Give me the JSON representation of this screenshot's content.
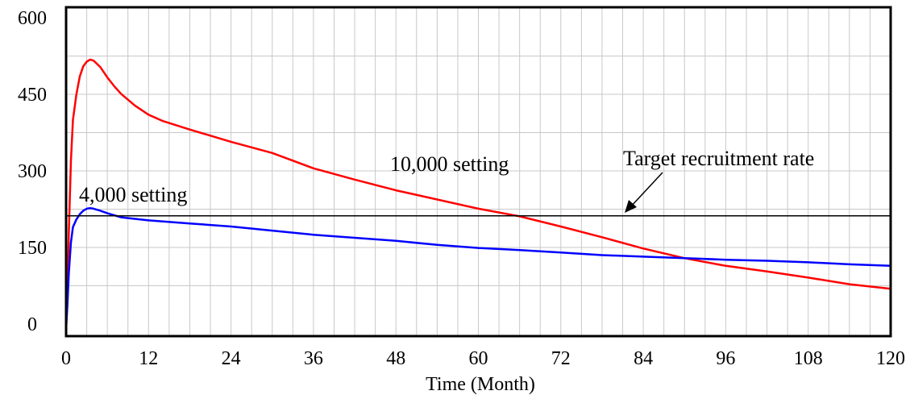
{
  "chart_data": {
    "type": "line",
    "title": "",
    "xlabel": "Time (Month)",
    "ylabel": "",
    "xlim": [
      0,
      120
    ],
    "ylim": [
      0,
      600
    ],
    "x_ticks": [
      0,
      12,
      24,
      36,
      48,
      60,
      72,
      84,
      96,
      108,
      120
    ],
    "y_ticks": [
      0,
      150,
      300,
      450,
      600
    ],
    "grid": true,
    "legend": "none",
    "series": [
      {
        "color": "#ff0000",
        "points": [
          [
            0,
            -10
          ],
          [
            0.2,
            60
          ],
          [
            0.4,
            180
          ],
          [
            0.7,
            320
          ],
          [
            1,
            400
          ],
          [
            1.5,
            450
          ],
          [
            2,
            485
          ],
          [
            2.5,
            505
          ],
          [
            3,
            514
          ],
          [
            3.5,
            518
          ],
          [
            4,
            516
          ],
          [
            5,
            503
          ],
          [
            6,
            483
          ],
          [
            7,
            466
          ],
          [
            8,
            451
          ],
          [
            10,
            428
          ],
          [
            12,
            410
          ],
          [
            14,
            398
          ],
          [
            18,
            381
          ],
          [
            24,
            357
          ],
          [
            30,
            335
          ],
          [
            36,
            305
          ],
          [
            42,
            283
          ],
          [
            48,
            262
          ],
          [
            54,
            244
          ],
          [
            60,
            226
          ],
          [
            66,
            211
          ],
          [
            72,
            191
          ],
          [
            78,
            170
          ],
          [
            84,
            148
          ],
          [
            90,
            129
          ],
          [
            96,
            114
          ],
          [
            102,
            103
          ],
          [
            108,
            91
          ],
          [
            114,
            78
          ],
          [
            120,
            69
          ]
        ]
      },
      {
        "color": "#0000ff",
        "points": [
          [
            0,
            -10
          ],
          [
            0.2,
            40
          ],
          [
            0.4,
            100
          ],
          [
            0.7,
            160
          ],
          [
            1,
            190
          ],
          [
            1.5,
            205
          ],
          [
            2,
            215
          ],
          [
            2.5,
            222
          ],
          [
            3,
            226
          ],
          [
            3.5,
            227
          ],
          [
            4,
            226
          ],
          [
            5,
            222
          ],
          [
            6,
            217
          ],
          [
            8,
            209
          ],
          [
            12,
            203
          ],
          [
            18,
            197
          ],
          [
            24,
            191
          ],
          [
            30,
            183
          ],
          [
            36,
            175
          ],
          [
            42,
            169
          ],
          [
            48,
            163
          ],
          [
            54,
            155
          ],
          [
            60,
            149
          ],
          [
            66,
            145
          ],
          [
            72,
            140
          ],
          [
            78,
            135
          ],
          [
            84,
            132
          ],
          [
            90,
            129
          ],
          [
            96,
            126
          ],
          [
            102,
            124
          ],
          [
            108,
            121
          ],
          [
            114,
            117
          ],
          [
            120,
            114
          ]
        ]
      },
      {
        "color": "#000000",
        "points": [
          [
            0,
            212
          ],
          [
            120,
            212
          ]
        ]
      }
    ],
    "annotations": {
      "red_label": "10,000 setting",
      "blue_label": "4,000 setting",
      "target_label": "Target recruitment rate"
    }
  }
}
